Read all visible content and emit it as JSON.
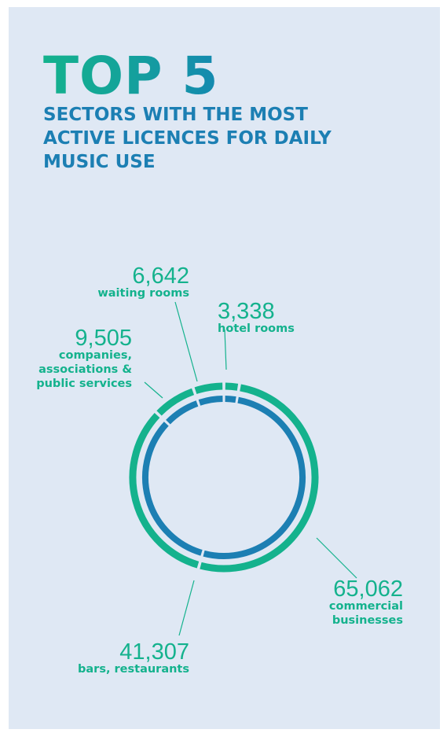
{
  "header": {
    "title": "TOP 5",
    "subtitle_lines": [
      "SECTORS WITH THE MOST",
      "ACTIVE LICENCES FOR DAILY",
      "MUSIC USE"
    ]
  },
  "colors": {
    "background": "#dfe8f4",
    "outer_ring": "#14b28d",
    "inner_ring": "#1c7fb3",
    "title_gradient_start": "#14b28d",
    "title_gradient_end": "#1489b0",
    "subtitle": "#1c7fb3",
    "labels": "#14b28d",
    "leader_lines": "#14b28d"
  },
  "chart_data": {
    "type": "pie",
    "variant": "double-ring donut",
    "slices": [
      {
        "value": 3338,
        "value_label": "3,338",
        "label_lines": [
          "hotel rooms"
        ]
      },
      {
        "value": 65062,
        "value_label": "65,062",
        "label_lines": [
          "commercial",
          "businesses"
        ]
      },
      {
        "value": 41307,
        "value_label": "41,307",
        "label_lines": [
          "bars, restaurants"
        ]
      },
      {
        "value": 9505,
        "value_label": "9,505",
        "label_lines": [
          "companies,",
          "associations &",
          "public services"
        ]
      },
      {
        "value": 6642,
        "value_label": "6,642",
        "label_lines": [
          "waiting rooms"
        ]
      }
    ]
  }
}
